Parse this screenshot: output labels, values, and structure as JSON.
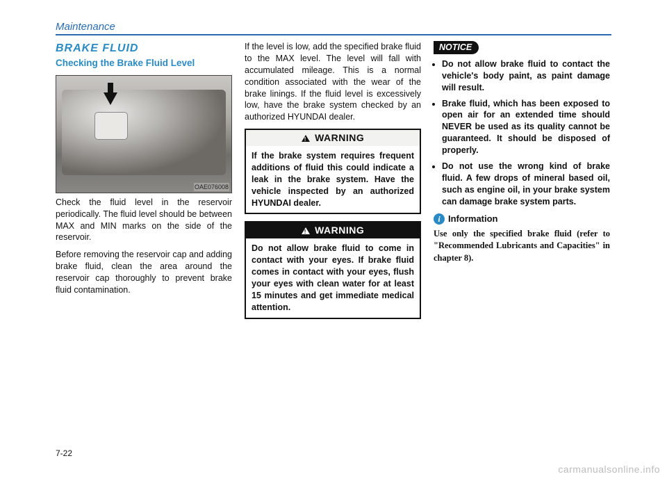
{
  "header": "Maintenance",
  "section_title": "BRAKE FLUID",
  "subtitle": "Checking the Brake Fluid Level",
  "photo_tag": "OAE076008",
  "col1_p1": "Check the fluid level in the reservoir periodically. The fluid level should be between MAX and MIN marks on the side of the reservoir.",
  "col1_p2": "Before removing the reservoir cap and adding brake fluid, clean the area around the reservoir cap thoroughly to prevent brake fluid contamination.",
  "col2_p1": "If the level is low, add the specified brake fluid to the MAX level. The level will fall with accumulated mileage. This is a normal condition associated with the wear of the brake linings. If the fluid level is excessively low, have the brake system checked by an authorized HYUNDAI dealer.",
  "warn1_title": "WARNING",
  "warn1_body": "If the brake system requires frequent additions of fluid this could indicate a leak in the brake system. Have the vehicle inspected by an authorized HYUNDAI dealer.",
  "warn2_title": "WARNING",
  "warn2_body": "Do not allow brake fluid to come in contact with your eyes. If brake fluid comes in contact with your eyes, flush your eyes with clean water for at least 15 minutes and get immediate medical attention.",
  "notice_label": "NOTICE",
  "bullets": [
    "Do not allow brake fluid to contact the vehicle's body paint, as paint damage will result.",
    "Brake fluid, which has been exposed to open air for an extended time should NEVER be used as its quality cannot be guaranteed. It should be disposed of properly.",
    "Do not use the wrong kind of brake fluid. A few drops of mineral based oil, such as engine oil, in your brake system can damage brake system parts."
  ],
  "info_icon": "i",
  "info_title": "Information",
  "info_text": "Use only the specified brake fluid (refer to \"Recommended Lubricants and Capacities\" in chapter 8).",
  "page_num": "7-22",
  "watermark": "carmanualsonline.info"
}
